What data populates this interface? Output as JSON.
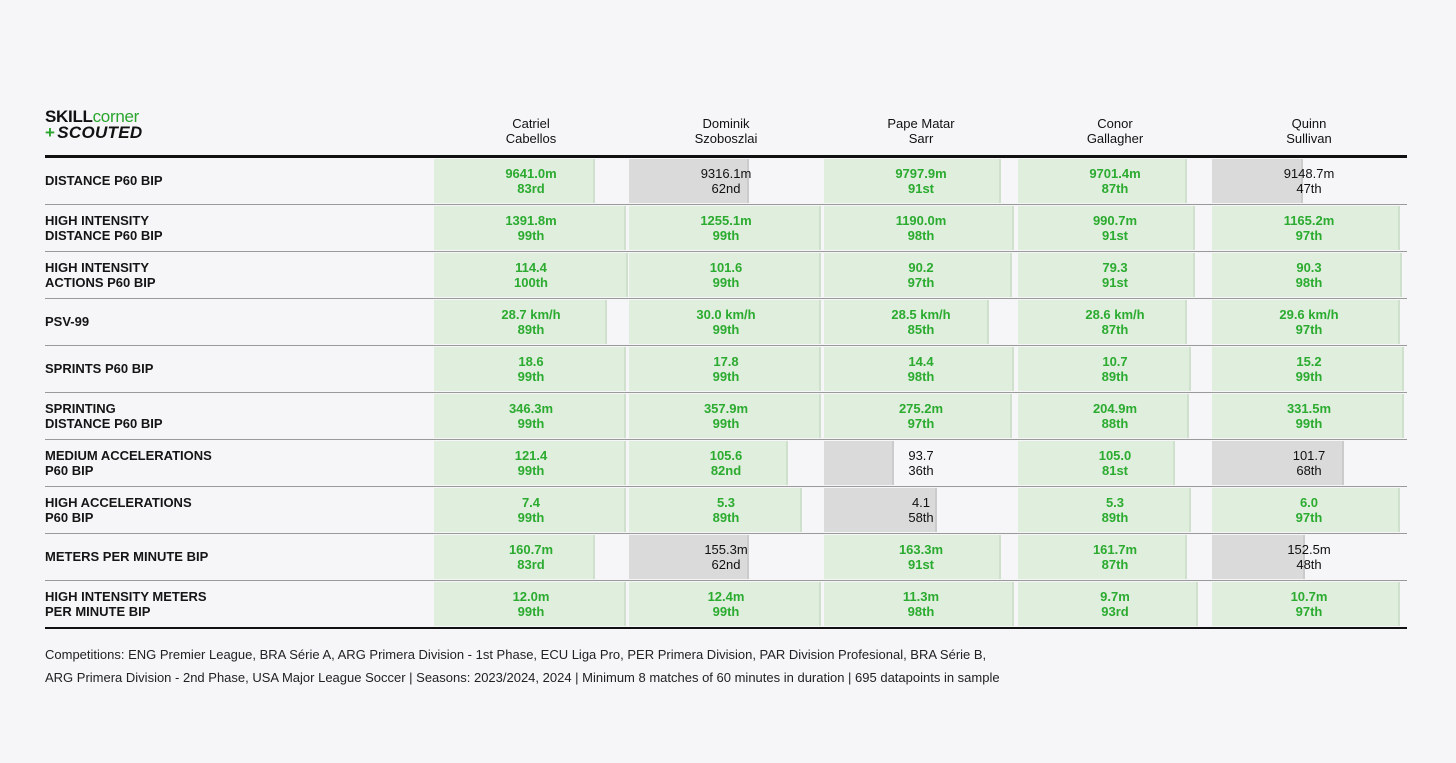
{
  "logo": {
    "word1": "SKILL",
    "word2": "corner",
    "plus": "+",
    "word3": "SCOUTED"
  },
  "players": [
    {
      "first": "Catriel",
      "last": "Cabellos"
    },
    {
      "first": "Dominik",
      "last": "Szoboszlai"
    },
    {
      "first": "Pape Matar",
      "last": "Sarr"
    },
    {
      "first": "Conor",
      "last": "Gallagher"
    },
    {
      "first": "Quinn",
      "last": "Sullivan"
    }
  ],
  "colors": {
    "good_text": "#2bab2f",
    "good_bar": "#dfeedd",
    "neutral_bar": "#dadada",
    "neutral_text": "#111111"
  },
  "chart_data": {
    "type": "table",
    "metrics": [
      {
        "label1": "DISTANCE P60 BIP",
        "label2": ""
      },
      {
        "label1": "HIGH INTENSITY",
        "label2": "DISTANCE P60 BIP"
      },
      {
        "label1": "HIGH INTENSITY",
        "label2": "ACTIONS P60 BIP"
      },
      {
        "label1": "PSV-99",
        "label2": ""
      },
      {
        "label1": "SPRINTS P60 BIP",
        "label2": ""
      },
      {
        "label1": "SPRINTING",
        "label2": "DISTANCE P60 BIP"
      },
      {
        "label1": "MEDIUM ACCELERATIONS",
        "label2": "P60 BIP"
      },
      {
        "label1": "HIGH ACCELERATIONS",
        "label2": "P60 BIP"
      },
      {
        "label1": "METERS PER MINUTE BIP",
        "label2": ""
      },
      {
        "label1": "HIGH INTENSITY METERS",
        "label2": "PER MINUTE BIP"
      }
    ],
    "rows": [
      [
        {
          "value": "9641.0m",
          "rank": "83rd",
          "pct": 83
        },
        {
          "value": "9316.1m",
          "rank": "62nd",
          "pct": 62
        },
        {
          "value": "9797.9m",
          "rank": "91st",
          "pct": 91
        },
        {
          "value": "9701.4m",
          "rank": "87th",
          "pct": 87
        },
        {
          "value": "9148.7m",
          "rank": "47th",
          "pct": 47
        }
      ],
      [
        {
          "value": "1391.8m",
          "rank": "99th",
          "pct": 99
        },
        {
          "value": "1255.1m",
          "rank": "99th",
          "pct": 99
        },
        {
          "value": "1190.0m",
          "rank": "98th",
          "pct": 98
        },
        {
          "value": "990.7m",
          "rank": "91st",
          "pct": 91
        },
        {
          "value": "1165.2m",
          "rank": "97th",
          "pct": 97
        }
      ],
      [
        {
          "value": "114.4",
          "rank": "100th",
          "pct": 100
        },
        {
          "value": "101.6",
          "rank": "99th",
          "pct": 99
        },
        {
          "value": "90.2",
          "rank": "97th",
          "pct": 97
        },
        {
          "value": "79.3",
          "rank": "91st",
          "pct": 91
        },
        {
          "value": "90.3",
          "rank": "98th",
          "pct": 98
        }
      ],
      [
        {
          "value": "28.7 km/h",
          "rank": "89th",
          "pct": 89
        },
        {
          "value": "30.0 km/h",
          "rank": "99th",
          "pct": 99
        },
        {
          "value": "28.5 km/h",
          "rank": "85th",
          "pct": 85
        },
        {
          "value": "28.6 km/h",
          "rank": "87th",
          "pct": 87
        },
        {
          "value": "29.6 km/h",
          "rank": "97th",
          "pct": 97
        }
      ],
      [
        {
          "value": "18.6",
          "rank": "99th",
          "pct": 99
        },
        {
          "value": "17.8",
          "rank": "99th",
          "pct": 99
        },
        {
          "value": "14.4",
          "rank": "98th",
          "pct": 98
        },
        {
          "value": "10.7",
          "rank": "89th",
          "pct": 89
        },
        {
          "value": "15.2",
          "rank": "99th",
          "pct": 99
        }
      ],
      [
        {
          "value": "346.3m",
          "rank": "99th",
          "pct": 99
        },
        {
          "value": "357.9m",
          "rank": "99th",
          "pct": 99
        },
        {
          "value": "275.2m",
          "rank": "97th",
          "pct": 97
        },
        {
          "value": "204.9m",
          "rank": "88th",
          "pct": 88
        },
        {
          "value": "331.5m",
          "rank": "99th",
          "pct": 99
        }
      ],
      [
        {
          "value": "121.4",
          "rank": "99th",
          "pct": 99
        },
        {
          "value": "105.6",
          "rank": "82nd",
          "pct": 82
        },
        {
          "value": "93.7",
          "rank": "36th",
          "pct": 36
        },
        {
          "value": "105.0",
          "rank": "81st",
          "pct": 81
        },
        {
          "value": "101.7",
          "rank": "68th",
          "pct": 68
        }
      ],
      [
        {
          "value": "7.4",
          "rank": "99th",
          "pct": 99
        },
        {
          "value": "5.3",
          "rank": "89th",
          "pct": 89
        },
        {
          "value": "4.1",
          "rank": "58th",
          "pct": 58
        },
        {
          "value": "5.3",
          "rank": "89th",
          "pct": 89
        },
        {
          "value": "6.0",
          "rank": "97th",
          "pct": 97
        }
      ],
      [
        {
          "value": "160.7m",
          "rank": "83rd",
          "pct": 83
        },
        {
          "value": "155.3m",
          "rank": "62nd",
          "pct": 62
        },
        {
          "value": "163.3m",
          "rank": "91st",
          "pct": 91
        },
        {
          "value": "161.7m",
          "rank": "87th",
          "pct": 87
        },
        {
          "value": "152.5m",
          "rank": "48th",
          "pct": 48
        }
      ],
      [
        {
          "value": "12.0m",
          "rank": "99th",
          "pct": 99
        },
        {
          "value": "12.4m",
          "rank": "99th",
          "pct": 99
        },
        {
          "value": "11.3m",
          "rank": "98th",
          "pct": 98
        },
        {
          "value": "9.7m",
          "rank": "93rd",
          "pct": 93
        },
        {
          "value": "10.7m",
          "rank": "97th",
          "pct": 97
        }
      ]
    ]
  },
  "footer": {
    "line1": "Competitions: ENG Premier League, BRA Série A, ARG Primera Division - 1st Phase, ECU Liga Pro, PER Primera Division, PAR Division Profesional, BRA Série B,",
    "line2": "ARG Primera Division - 2nd Phase, USA Major League Soccer | Seasons: 2023/2024, 2024 | Minimum 8 matches of 60 minutes in duration | 695 datapoints in sample"
  }
}
